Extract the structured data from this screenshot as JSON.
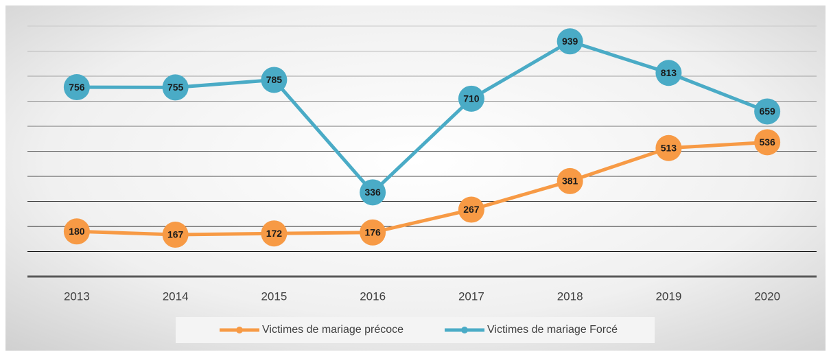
{
  "chart_data": {
    "type": "line",
    "categories": [
      "2013",
      "2014",
      "2015",
      "2016",
      "2017",
      "2018",
      "2019",
      "2020"
    ],
    "series": [
      {
        "name": "Victimes de mariage précoce",
        "color": "#f79a45",
        "values": [
          180,
          167,
          172,
          176,
          267,
          381,
          513,
          536
        ]
      },
      {
        "name": "Victimes de mariage Forcé",
        "color": "#4aabc6",
        "values": [
          756,
          755,
          785,
          336,
          710,
          939,
          813,
          659
        ]
      }
    ],
    "ylim": [
      0,
      1000
    ],
    "yticks": [
      0,
      100,
      200,
      300,
      400,
      500,
      600,
      700,
      800,
      900,
      1000
    ],
    "grid": true,
    "data_labels": true,
    "legend": "bottom"
  }
}
